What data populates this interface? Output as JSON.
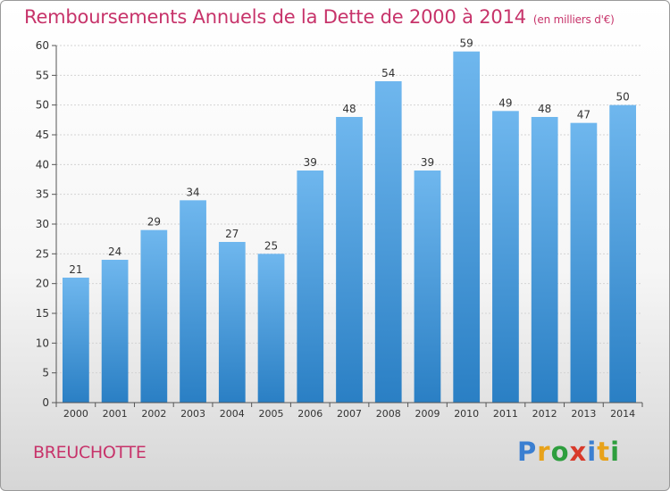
{
  "title": "Remboursements Annuels de la Dette de 2000 à 2014",
  "unit": "(en milliers d'€)",
  "commune": "BREUCHOTTE",
  "logo": {
    "text": "Proxiti",
    "colors": [
      "#3b7fd1",
      "#e8a21a",
      "#2e9e3e",
      "#d83a2b",
      "#3b7fd1",
      "#e8a21a",
      "#2e9e3e"
    ]
  },
  "colors": {
    "title": "#c7336a",
    "bar_light": "#6fb7ee",
    "bar_dark": "#2a7fc4"
  },
  "chart_data": {
    "type": "bar",
    "categories": [
      "2000",
      "2001",
      "2002",
      "2003",
      "2004",
      "2005",
      "2006",
      "2007",
      "2008",
      "2009",
      "2010",
      "2011",
      "2012",
      "2013",
      "2014"
    ],
    "values": [
      21,
      24,
      29,
      34,
      27,
      25,
      39,
      48,
      54,
      39,
      59,
      49,
      48,
      47,
      50
    ],
    "ylim": [
      0,
      60
    ],
    "yticks": [
      0,
      5,
      10,
      15,
      20,
      25,
      30,
      35,
      40,
      45,
      50,
      55,
      60
    ],
    "grid": true,
    "data_labels": true
  }
}
